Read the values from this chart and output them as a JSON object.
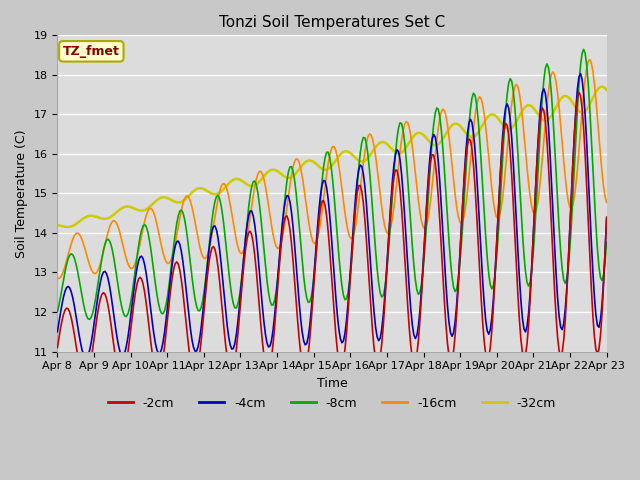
{
  "title": "Tonzi Soil Temperatures Set C",
  "xlabel": "Time",
  "ylabel": "Soil Temperature (C)",
  "ylim": [
    11.0,
    19.0
  ],
  "yticks": [
    11.0,
    12.0,
    13.0,
    14.0,
    15.0,
    16.0,
    17.0,
    18.0,
    19.0
  ],
  "x_labels": [
    "Apr 8",
    "Apr 9",
    "Apr 10",
    "Apr 11",
    "Apr 12",
    "Apr 13",
    "Apr 14",
    "Apr 15",
    "Apr 16",
    "Apr 17",
    "Apr 18",
    "Apr 19",
    "Apr 20",
    "Apr 21",
    "Apr 22",
    "Apr 23"
  ],
  "series": {
    "-2cm": {
      "color": "#cc0000",
      "lw": 1.2
    },
    "-4cm": {
      "color": "#0000cc",
      "lw": 1.2
    },
    "-8cm": {
      "color": "#00aa00",
      "lw": 1.2
    },
    "-16cm": {
      "color": "#ff8800",
      "lw": 1.2
    },
    "-32cm": {
      "color": "#cccc00",
      "lw": 1.8
    }
  },
  "legend_label": "TZ_fmet",
  "legend_label_color": "#8b0000",
  "legend_box_facecolor": "#ffffcc",
  "legend_box_edgecolor": "#aaaa00",
  "fig_facecolor": "#c8c8c8",
  "ax_facecolor": "#dcdcdc",
  "grid_color": "#ffffff",
  "title_fontsize": 11,
  "axis_label_fontsize": 9,
  "tick_fontsize": 8
}
